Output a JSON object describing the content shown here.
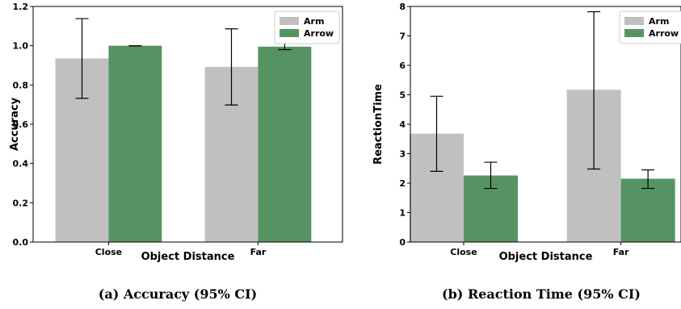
{
  "chart_data": [
    {
      "type": "bar",
      "categories": [
        "Close",
        "Far"
      ],
      "series": [
        {
          "name": "Arm",
          "values": [
            0.935,
            0.892
          ],
          "ci_low": [
            0.732,
            0.698
          ],
          "ci_high": [
            1.138,
            1.086
          ]
        },
        {
          "name": "Arrow",
          "values": [
            1.0,
            0.995
          ],
          "ci_low": [
            0.999,
            0.98
          ],
          "ci_high": [
            1.0,
            1.015
          ]
        }
      ],
      "xlabel": "Object Distance",
      "ylabel": "Accuracy",
      "ylim": [
        0,
        1.2
      ],
      "yticks": [
        "0.0",
        "0.2",
        "0.4",
        "0.6",
        "0.8",
        "1.0",
        "1.2"
      ],
      "ytick_values": [
        0,
        0.2,
        0.4,
        0.6,
        0.8,
        1.0,
        1.2
      ],
      "legend_position": "top-right",
      "grid": false,
      "caption": "(a) Accuracy (95% CI)",
      "colors": {
        "Arm": "#c0c0c0",
        "Arrow": "#559462"
      }
    },
    {
      "type": "bar",
      "categories": [
        "Close",
        "Far"
      ],
      "series": [
        {
          "name": "Arm",
          "values": [
            3.68,
            5.17
          ],
          "ci_low": [
            2.4,
            2.48
          ],
          "ci_high": [
            4.95,
            7.82
          ]
        },
        {
          "name": "Arrow",
          "values": [
            2.26,
            2.15
          ],
          "ci_low": [
            1.82,
            1.82
          ],
          "ci_high": [
            2.71,
            2.45
          ]
        }
      ],
      "xlabel": "Object Distance",
      "ylabel": "ReactionTime",
      "ylim": [
        0,
        8
      ],
      "yticks": [
        "0",
        "1",
        "2",
        "3",
        "4",
        "5",
        "6",
        "7",
        "8"
      ],
      "ytick_values": [
        0,
        1,
        2,
        3,
        4,
        5,
        6,
        7,
        8
      ],
      "legend_position": "top-right",
      "grid": false,
      "caption": "(b) Reaction Time (95% CI)",
      "colors": {
        "Arm": "#c0c0c0",
        "Arrow": "#559462"
      }
    }
  ]
}
